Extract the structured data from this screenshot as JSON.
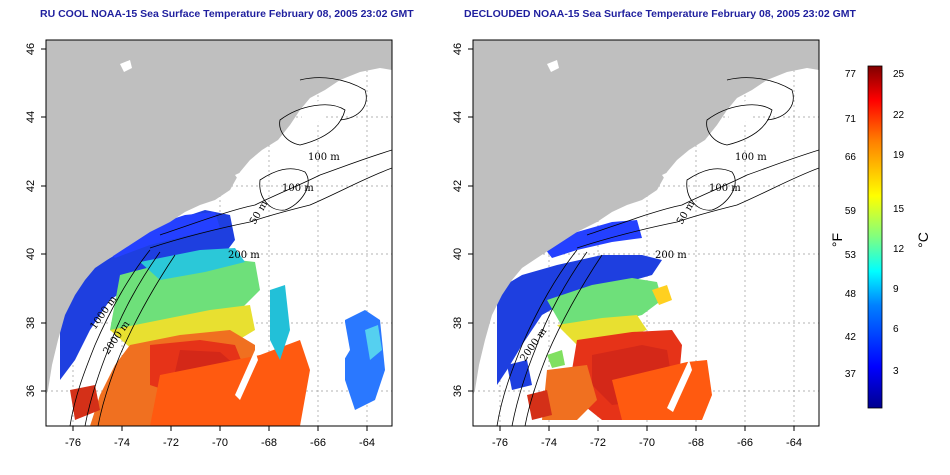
{
  "titles": {
    "left": "RU COOL NOAA-15 Sea Surface Temperature February 08, 2005 23:02 GMT",
    "right": "DECLOUDED NOAA-15 Sea Surface Temperature February 08, 2005 23:02 GMT"
  },
  "maps": [
    {
      "x_ticks": [
        "-76",
        "-74",
        "-72",
        "-70",
        "-68",
        "-66",
        "-64"
      ],
      "y_ticks": [
        "36",
        "38",
        "40",
        "42",
        "44",
        "46"
      ],
      "contours": [
        "100 m",
        "100 m",
        "50 m",
        "200 m",
        "2000 m",
        "1000 m"
      ]
    },
    {
      "x_ticks": [
        "-76",
        "-74",
        "-72",
        "-70",
        "-68",
        "-66",
        "-64"
      ],
      "y_ticks": [
        "36",
        "38",
        "40",
        "42",
        "44",
        "46"
      ],
      "contours": [
        "100 m",
        "100 m",
        "50 m",
        "200 m",
        "2000 m"
      ]
    }
  ],
  "colorbar": {
    "fahrenheit_unit": "°F",
    "celsius_unit": "°C",
    "fahrenheit_ticks": [
      "77",
      "71",
      "66",
      "59",
      "53",
      "48",
      "42",
      "37"
    ],
    "celsius_ticks": [
      "25",
      "22",
      "19",
      "15",
      "12",
      "9",
      "6",
      "3"
    ]
  }
}
